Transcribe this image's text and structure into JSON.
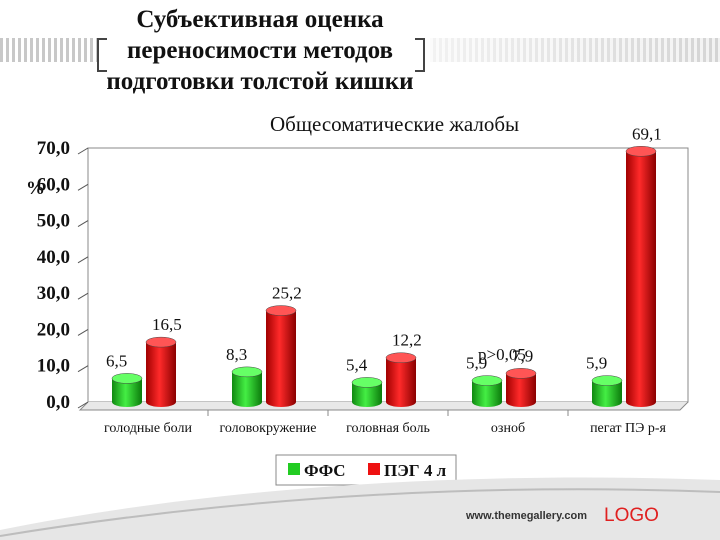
{
  "slide": {
    "title": "Субъективная оценка переносимости методов подготовки толстой кишки",
    "subtitle": "Общесоматические жалобы",
    "footer_url": "www.themegallery.com",
    "footer_logo": "LOGO"
  },
  "chart_data": {
    "type": "bar",
    "title": "Общесоматические жалобы",
    "ylabel": "%",
    "xlabel": "",
    "ylim": [
      0,
      70
    ],
    "yticks": [
      "0,0",
      "10,0",
      "20,0",
      "30,0",
      "40,0",
      "50,0",
      "60,0",
      "70,0"
    ],
    "grid": false,
    "legend_position": "bottom",
    "categories": [
      "голодные боли",
      "головокружение",
      "головная боль",
      "озноб",
      "пегат ПЭ р-я"
    ],
    "series": [
      {
        "name": "ФФС",
        "color": "#22cc22",
        "values": [
          6.5,
          8.3,
          5.4,
          5.9,
          5.9
        ],
        "labels": [
          "6,5",
          "8,3",
          "5,4",
          "5,9",
          "5,9"
        ]
      },
      {
        "name": "ПЭГ 4 л",
        "color": "#ee1111",
        "values": [
          16.5,
          25.2,
          12.2,
          7.9,
          69.1
        ],
        "labels": [
          "16,5",
          "25,2",
          "12,2",
          "7,9",
          "69,1"
        ]
      }
    ],
    "annotations": [
      "p>0,05"
    ]
  }
}
